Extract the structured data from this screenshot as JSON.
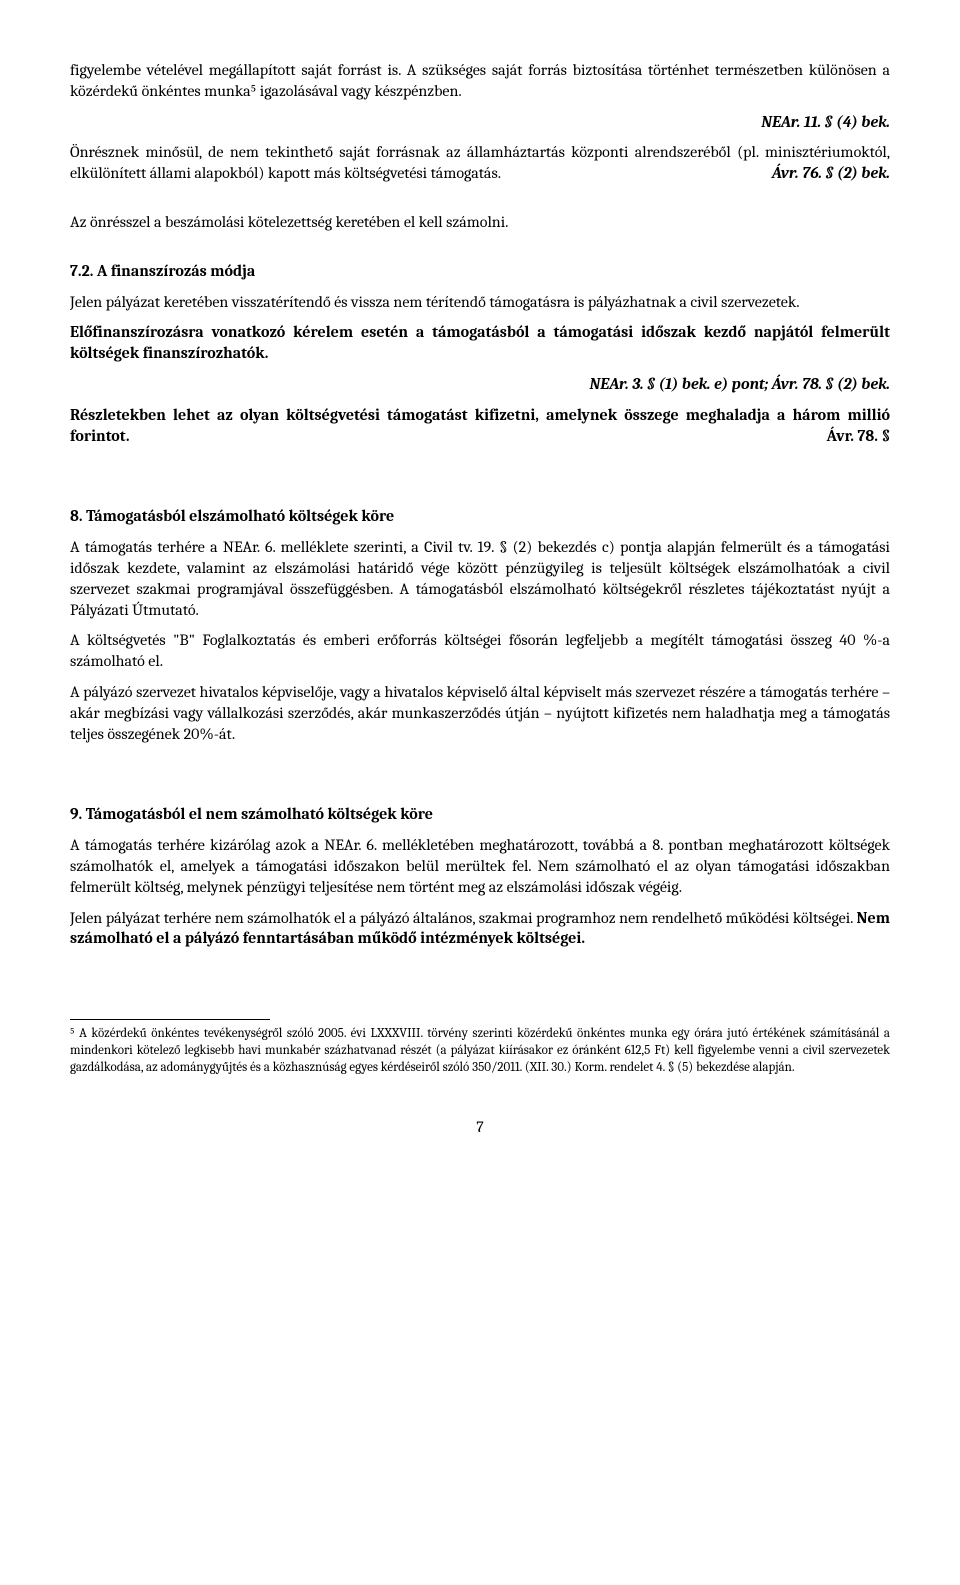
{
  "intro": {
    "p1": "figyelembe vételével megállapított saját forrást is. A szükséges saját forrás biztosítása történhet természetben különösen a közérdekű önkéntes munka⁵ igazolásával vagy készpénzben.",
    "ref1": "NEAr. 11. § (4) bek.",
    "p2_a": "Önrésznek minősül, de nem tekinthető saját forrásnak az államháztartás központi alrendszeréből (pl. minisztériumoktól, elkülönített állami alapokból) kapott más költségvetési támogatás.",
    "ref2": "Ávr. 76. § (2) bek.",
    "p3": "Az önrésszel a beszámolási kötelezettség keretében el kell számolni."
  },
  "s72": {
    "title": "7.2.    A finanszírozás módja",
    "p1": "Jelen pályázat keretében visszatérítendő és vissza nem térítendő támogatásra is pályázhatnak a civil szervezetek.",
    "p2": "Előfinanszírozásra vonatkozó kérelem esetén a támogatásból a támogatási időszak kezdő napjától felmerült költségek finanszírozhatók.",
    "ref1": "NEAr. 3. § (1) bek. e) pont; Ávr. 78. § (2) bek.",
    "p3_a": "Részletekben lehet az olyan költségvetési támogatást kifizetni, amelynek összege meghaladja a három millió forintot.",
    "ref2": "Ávr. 78. §"
  },
  "s8": {
    "title": "8.        Támogatásból elszámolható költségek köre",
    "p1": "A támogatás terhére a NEAr. 6. melléklete szerinti, a Civil tv. 19. § (2) bekezdés c) pontja alapján felmerült és a támogatási időszak kezdete, valamint az elszámolási határidő vége között pénzügyileg is teljesült költségek elszámolhatóak a civil szervezet szakmai programjával összefüggésben. A támogatásból elszámolható költségekről részletes tájékoztatást nyújt a Pályázati Útmutató.",
    "p2": "A költségvetés \"B\" Foglalkoztatás és emberi erőforrás költségei fősorán legfeljebb a megítélt támogatási összeg 40 %-a számolható el.",
    "p3": "A pályázó szervezet hivatalos képviselője, vagy a hivatalos képviselő által képviselt más szervezet részére a támogatás terhére – akár megbízási vagy vállalkozási szerződés, akár munkaszerződés útján – nyújtott kifizetés nem haladhatja meg a támogatás teljes összegének 20%-át."
  },
  "s9": {
    "title": "9.        Támogatásból el nem számolható költségek köre",
    "p1": "A támogatás terhére kizárólag azok a NEAr. 6. mellékletében meghatározott, továbbá a 8. pontban meghatározott költségek számolhatók el, amelyek a támogatási időszakon belül merültek fel. Nem számolható el az olyan támogatási időszakban felmerült költség, melynek pénzügyi teljesítése nem történt meg az elszámolási időszak végéig.",
    "p2_a": "Jelen pályázat terhére nem számolhatók el a pályázó általános, szakmai programhoz nem rendelhető működési költségei. ",
    "p2_b": "Nem számolható el a pályázó fenntartásában működő intézmények költségei."
  },
  "footnote": {
    "text": "⁵ A közérdekű önkéntes tevékenységről szóló 2005. évi LXXXVIII. törvény szerinti közérdekű önkéntes munka egy órára jutó értékének számításánál a mindenkori kötelező legkisebb havi munkabér százhatvanad részét (a pályázat kiírásakor ez óránként 612,5 Ft) kell figyelembe venni a civil szervezetek gazdálkodása, az adománygyűjtés és a közhasznúság egyes kérdéseiről szóló 350/2011. (XII. 30.) Korm. rendelet 4. § (5) bekezdése alapján."
  },
  "page_number": "7"
}
